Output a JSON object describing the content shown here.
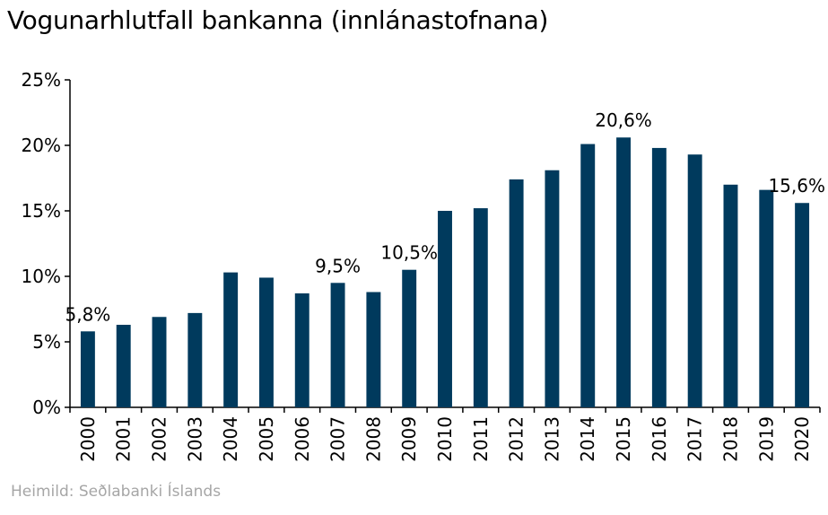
{
  "title": "Vogunarhlutfall bankanna (innlánastofnana)",
  "source": "Heimild: Seðlabanki Íslands",
  "colors": {
    "bar": "#003a5d",
    "axis": "#000000",
    "source_text": "#a6a6a6"
  },
  "chart_data": {
    "type": "bar",
    "title": "Vogunarhlutfall bankanna (innlánastofnana)",
    "xlabel": "",
    "ylabel": "",
    "ylim": [
      0,
      25
    ],
    "yticks": [
      0,
      5,
      10,
      15,
      20,
      25
    ],
    "ytick_labels": [
      "0%",
      "5%",
      "10%",
      "15%",
      "20%",
      "25%"
    ],
    "grid": false,
    "legend": "none",
    "categories": [
      "2000",
      "2001",
      "2002",
      "2003",
      "2004",
      "2005",
      "2006",
      "2007",
      "2008",
      "2009",
      "2010",
      "2011",
      "2012",
      "2013",
      "2014",
      "2015",
      "2016",
      "2017",
      "2018",
      "2019",
      "2020"
    ],
    "values": [
      5.8,
      6.3,
      6.9,
      7.2,
      10.3,
      9.9,
      8.7,
      9.5,
      8.8,
      10.5,
      15.0,
      15.2,
      17.4,
      18.1,
      20.1,
      20.6,
      19.8,
      19.3,
      17.0,
      16.6,
      15.6
    ],
    "annotations": [
      {
        "category": "2000",
        "value": 5.8,
        "text": "5,8%"
      },
      {
        "category": "2007",
        "value": 9.5,
        "text": "9,5%"
      },
      {
        "category": "2009",
        "value": 10.5,
        "text": "10,5%"
      },
      {
        "category": "2015",
        "value": 20.6,
        "text": "20,6%"
      },
      {
        "category": "2020",
        "value": 15.6,
        "text": "15,6%"
      }
    ]
  }
}
